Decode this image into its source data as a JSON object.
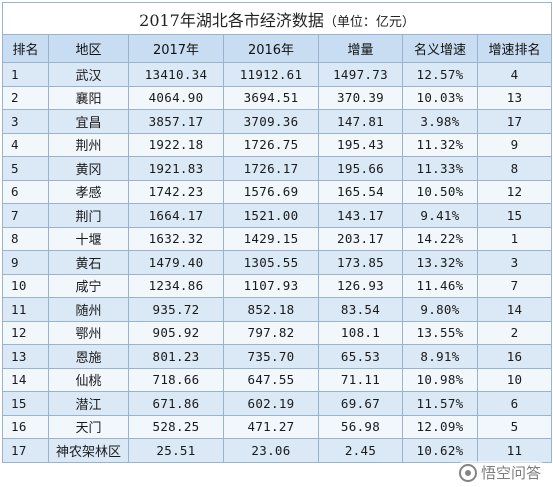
{
  "table": {
    "title": "2017年湖北各市经济数据",
    "unit": "（单位：亿元）",
    "headers": [
      "排名",
      "地区",
      "2017年",
      "2016年",
      "增量",
      "名义增速",
      "增速排名"
    ],
    "rows": [
      [
        "1",
        "武汉",
        "13410.34",
        "11912.61",
        "1497.73",
        "12.57%",
        "4"
      ],
      [
        "2",
        "襄阳",
        "4064.90",
        "3694.51",
        "370.39",
        "10.03%",
        "13"
      ],
      [
        "3",
        "宜昌",
        "3857.17",
        "3709.36",
        "147.81",
        "3.98%",
        "17"
      ],
      [
        "4",
        "荆州",
        "1922.18",
        "1726.75",
        "195.43",
        "11.32%",
        "9"
      ],
      [
        "5",
        "黄冈",
        "1921.83",
        "1726.17",
        "195.66",
        "11.33%",
        "8"
      ],
      [
        "6",
        "孝感",
        "1742.23",
        "1576.69",
        "165.54",
        "10.50%",
        "12"
      ],
      [
        "7",
        "荆门",
        "1664.17",
        "1521.00",
        "143.17",
        "9.41%",
        "15"
      ],
      [
        "8",
        "十堰",
        "1632.32",
        "1429.15",
        "203.17",
        "14.22%",
        "1"
      ],
      [
        "9",
        "黄石",
        "1479.40",
        "1305.55",
        "173.85",
        "13.32%",
        "3"
      ],
      [
        "10",
        "咸宁",
        "1234.86",
        "1107.93",
        "126.93",
        "11.46%",
        "7"
      ],
      [
        "11",
        "随州",
        "935.72",
        "852.18",
        "83.54",
        "9.80%",
        "14"
      ],
      [
        "12",
        "鄂州",
        "905.92",
        "797.82",
        "108.1",
        "13.55%",
        "2"
      ],
      [
        "13",
        "恩施",
        "801.23",
        "735.70",
        "65.53",
        "8.91%",
        "16"
      ],
      [
        "14",
        "仙桃",
        "718.66",
        "647.55",
        "71.11",
        "10.98%",
        "10"
      ],
      [
        "15",
        "潜江",
        "671.86",
        "602.19",
        "69.67",
        "11.57%",
        "6"
      ],
      [
        "16",
        "天门",
        "528.25",
        "471.27",
        "56.98",
        "12.09%",
        "5"
      ],
      [
        "17",
        "神农架林区",
        "25.51",
        "23.06",
        "2.45",
        "10.62%",
        "11"
      ]
    ]
  },
  "watermark": {
    "text": "悟空问答",
    "icon": "wukong-logo-icon"
  }
}
